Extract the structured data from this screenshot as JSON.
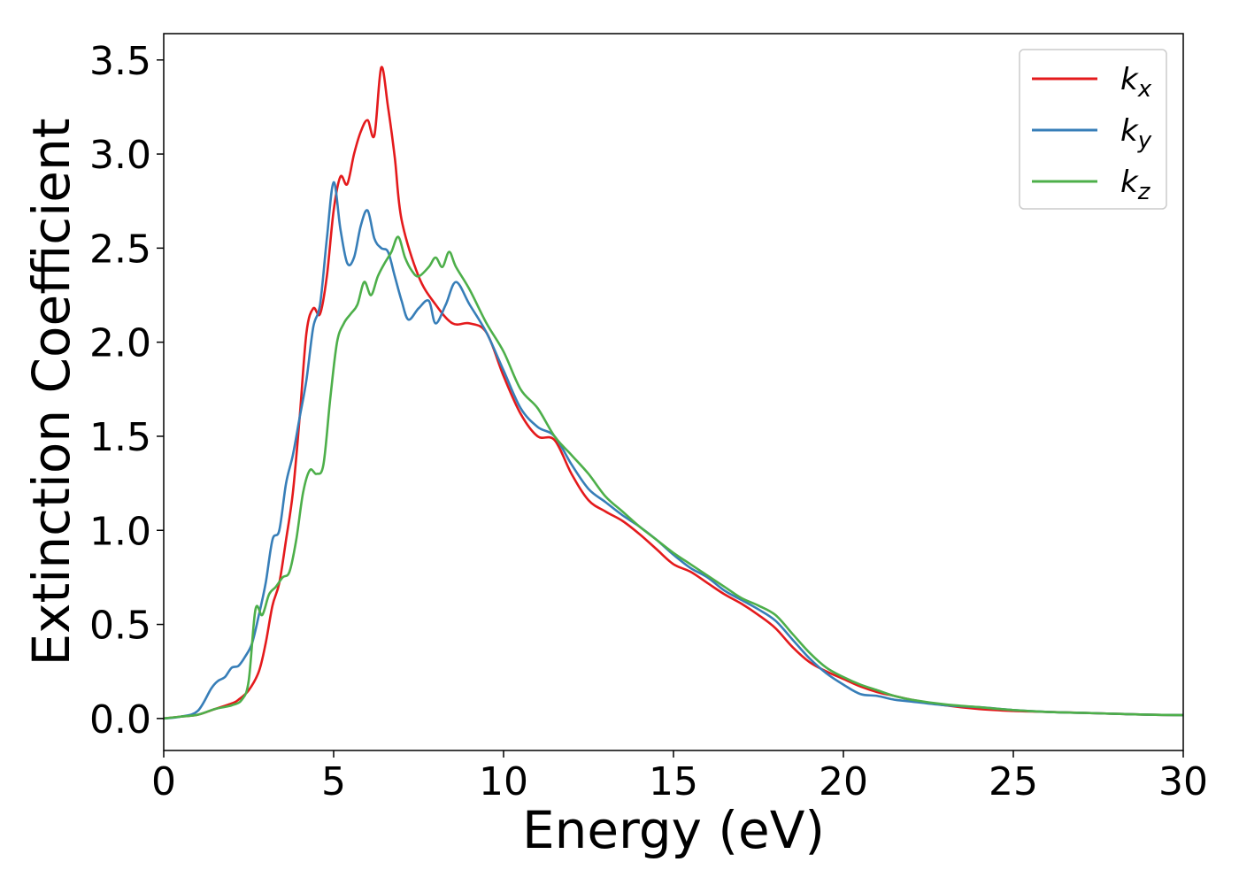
{
  "chart_data": {
    "type": "line",
    "title": "",
    "xlabel": "Energy (eV)",
    "ylabel": "Extinction Coefficient",
    "xlim": [
      0,
      30
    ],
    "ylim": [
      -0.17,
      3.64
    ],
    "xticks": [
      0,
      5,
      10,
      15,
      20,
      25,
      30
    ],
    "xtick_labels": [
      "0",
      "5",
      "10",
      "15",
      "20",
      "25",
      "30"
    ],
    "yticks": [
      0.0,
      0.5,
      1.0,
      1.5,
      2.0,
      2.5,
      3.0,
      3.5
    ],
    "ytick_labels": [
      "0.0",
      "0.5",
      "1.0",
      "1.5",
      "2.0",
      "2.5",
      "3.0",
      "3.5"
    ],
    "grid": false,
    "legend_position": "top-right",
    "series": [
      {
        "name": "k",
        "subscript": "x",
        "color": "#e41a1c",
        "x": [
          0,
          0.5,
          1.0,
          1.5,
          2.0,
          2.2,
          2.5,
          2.8,
          3.0,
          3.2,
          3.4,
          3.6,
          3.8,
          4.0,
          4.2,
          4.4,
          4.6,
          4.8,
          5.0,
          5.2,
          5.4,
          5.6,
          5.8,
          6.0,
          6.2,
          6.4,
          6.6,
          6.8,
          7.0,
          7.5,
          8.0,
          8.5,
          9.0,
          9.5,
          10.0,
          10.5,
          11.0,
          11.5,
          12.0,
          12.5,
          13.0,
          13.5,
          14.0,
          14.5,
          15.0,
          15.5,
          16.0,
          16.5,
          17.0,
          17.5,
          18.0,
          18.5,
          19.0,
          19.5,
          20.0,
          20.5,
          21.0,
          21.5,
          22.0,
          23.0,
          24.0,
          25.0,
          26.0,
          27.0,
          28.0,
          29.0,
          30.0
        ],
        "y": [
          0.0,
          0.01,
          0.02,
          0.05,
          0.08,
          0.1,
          0.15,
          0.25,
          0.4,
          0.6,
          0.72,
          0.95,
          1.2,
          1.6,
          2.05,
          2.18,
          2.15,
          2.35,
          2.7,
          2.88,
          2.84,
          3.0,
          3.12,
          3.18,
          3.1,
          3.46,
          3.25,
          2.98,
          2.65,
          2.35,
          2.2,
          2.1,
          2.1,
          2.05,
          1.82,
          1.62,
          1.5,
          1.48,
          1.3,
          1.16,
          1.1,
          1.05,
          0.98,
          0.9,
          0.82,
          0.78,
          0.72,
          0.66,
          0.61,
          0.55,
          0.48,
          0.38,
          0.3,
          0.25,
          0.21,
          0.17,
          0.14,
          0.12,
          0.1,
          0.07,
          0.05,
          0.04,
          0.035,
          0.03,
          0.025,
          0.02,
          0.018
        ]
      },
      {
        "name": "k",
        "subscript": "y",
        "color": "#377eb8",
        "x": [
          0,
          0.5,
          1.0,
          1.4,
          1.6,
          1.8,
          2.0,
          2.2,
          2.4,
          2.6,
          2.8,
          3.0,
          3.2,
          3.4,
          3.6,
          3.8,
          4.0,
          4.2,
          4.4,
          4.6,
          4.8,
          5.0,
          5.2,
          5.4,
          5.6,
          5.8,
          6.0,
          6.2,
          6.4,
          6.6,
          6.8,
          7.0,
          7.2,
          7.5,
          7.8,
          8.0,
          8.3,
          8.6,
          9.0,
          9.5,
          10.0,
          10.5,
          11.0,
          11.5,
          12.0,
          12.5,
          13.0,
          13.5,
          14.0,
          14.5,
          15.0,
          15.5,
          16.0,
          16.5,
          17.0,
          17.5,
          18.0,
          18.5,
          19.0,
          19.5,
          20.0,
          20.5,
          21.0,
          21.5,
          22.0,
          23.0,
          24.0,
          25.0,
          26.0,
          27.0,
          28.0,
          29.0,
          30.0
        ],
        "y": [
          0.0,
          0.01,
          0.04,
          0.16,
          0.2,
          0.22,
          0.27,
          0.28,
          0.33,
          0.4,
          0.55,
          0.72,
          0.95,
          1.0,
          1.25,
          1.4,
          1.6,
          1.8,
          2.08,
          2.2,
          2.55,
          2.85,
          2.6,
          2.42,
          2.45,
          2.62,
          2.7,
          2.55,
          2.5,
          2.48,
          2.35,
          2.22,
          2.12,
          2.18,
          2.22,
          2.1,
          2.2,
          2.32,
          2.2,
          2.05,
          1.85,
          1.65,
          1.55,
          1.5,
          1.35,
          1.22,
          1.15,
          1.08,
          1.02,
          0.95,
          0.87,
          0.8,
          0.75,
          0.68,
          0.63,
          0.58,
          0.52,
          0.42,
          0.32,
          0.24,
          0.18,
          0.13,
          0.12,
          0.1,
          0.09,
          0.07,
          0.06,
          0.045,
          0.035,
          0.03,
          0.025,
          0.02,
          0.018
        ]
      },
      {
        "name": "k",
        "subscript": "z",
        "color": "#4daf4a",
        "x": [
          0,
          0.5,
          1.0,
          1.5,
          2.0,
          2.3,
          2.5,
          2.7,
          2.9,
          3.1,
          3.3,
          3.5,
          3.7,
          3.9,
          4.1,
          4.3,
          4.5,
          4.7,
          4.9,
          5.1,
          5.3,
          5.5,
          5.7,
          5.9,
          6.1,
          6.3,
          6.5,
          6.7,
          6.9,
          7.1,
          7.3,
          7.5,
          7.8,
          8.0,
          8.2,
          8.4,
          8.6,
          9.0,
          9.5,
          10.0,
          10.5,
          11.0,
          11.5,
          12.0,
          12.5,
          13.0,
          13.5,
          14.0,
          14.5,
          15.0,
          15.5,
          16.0,
          16.5,
          17.0,
          17.5,
          18.0,
          18.5,
          19.0,
          19.5,
          20.0,
          20.5,
          21.0,
          21.5,
          22.0,
          23.0,
          24.0,
          25.0,
          26.0,
          27.0,
          28.0,
          29.0,
          30.0
        ],
        "y": [
          0.0,
          0.01,
          0.02,
          0.05,
          0.07,
          0.1,
          0.2,
          0.58,
          0.55,
          0.66,
          0.7,
          0.75,
          0.78,
          0.95,
          1.2,
          1.32,
          1.3,
          1.35,
          1.7,
          2.0,
          2.1,
          2.15,
          2.2,
          2.32,
          2.25,
          2.35,
          2.42,
          2.48,
          2.56,
          2.45,
          2.38,
          2.35,
          2.4,
          2.45,
          2.4,
          2.48,
          2.4,
          2.28,
          2.1,
          1.95,
          1.75,
          1.65,
          1.5,
          1.4,
          1.3,
          1.18,
          1.1,
          1.02,
          0.95,
          0.88,
          0.82,
          0.76,
          0.7,
          0.64,
          0.6,
          0.55,
          0.45,
          0.35,
          0.27,
          0.22,
          0.18,
          0.15,
          0.12,
          0.1,
          0.075,
          0.06,
          0.045,
          0.035,
          0.03,
          0.025,
          0.02,
          0.018
        ]
      }
    ]
  }
}
